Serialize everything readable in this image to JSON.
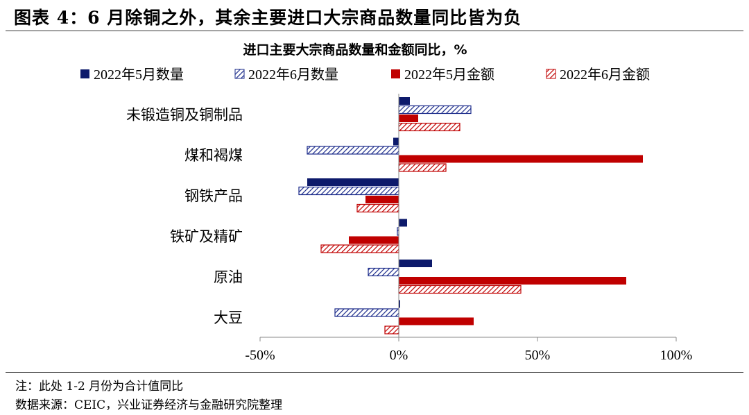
{
  "figure": {
    "title": "图表 4：6 月除铜之外，其余主要进口大宗商品数量同比皆为负",
    "note": "注：此处 1-2 月份为合计值同比",
    "source": "数据来源：CEIC，兴业证券经济与金融研究院整理"
  },
  "chart_data": {
    "type": "bar",
    "orientation": "horizontal",
    "title": "进口主要大宗商品数量和金额同比，%",
    "categories": [
      "未锻造铜及铜制品",
      "煤和褐煤",
      "钢铁产品",
      "铁矿及精矿",
      "原油",
      "大豆"
    ],
    "series": [
      {
        "name": "2022年5月数量",
        "values": [
          4,
          -2,
          -33,
          3,
          12,
          0.5
        ],
        "color": "#0d1a6b",
        "fill": "solid"
      },
      {
        "name": "2022年6月数量",
        "values": [
          26,
          -33,
          -36,
          -0.5,
          -11,
          -23
        ],
        "color": "#1a2a8a",
        "fill": "hatch"
      },
      {
        "name": "2022年5月金额",
        "values": [
          7,
          88,
          -12,
          -18,
          82,
          27
        ],
        "color": "#c00000",
        "fill": "solid"
      },
      {
        "name": "2022年6月金额",
        "values": [
          22,
          17,
          -15,
          -28,
          44,
          -5
        ],
        "color": "#c00000",
        "fill": "hatch"
      }
    ],
    "xlim": [
      -50,
      100
    ],
    "x_ticks": [
      "-50%",
      "0%",
      "50%",
      "100%"
    ],
    "x_tick_values": [
      -50,
      0,
      50,
      100
    ],
    "legend_position": "top",
    "grid": false
  }
}
